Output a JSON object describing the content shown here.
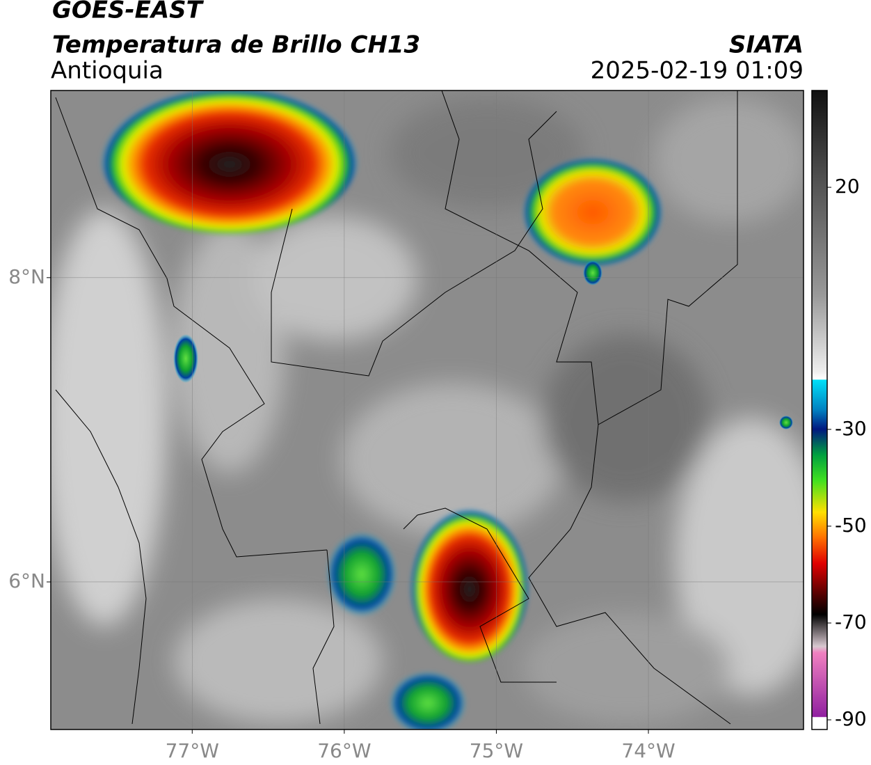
{
  "header": {
    "satellite": "GOES-EAST",
    "product": "Temperatura de Brillo CH13",
    "region": "Antioquia",
    "source": "SIATA",
    "datetime": "2025-02-19 01:09"
  },
  "map": {
    "xlim": [
      -77.93,
      -72.98
    ],
    "ylim": [
      5.03,
      9.23
    ],
    "xticks": [
      {
        "value": -77,
        "label": "77°W"
      },
      {
        "value": -76,
        "label": "76°W"
      },
      {
        "value": -75,
        "label": "75°W"
      },
      {
        "value": -74,
        "label": "74°W"
      }
    ],
    "yticks": [
      {
        "value": 8,
        "label": "8°N"
      },
      {
        "value": 6,
        "label": "6°N"
      }
    ],
    "grid": true
  },
  "colorbar": {
    "range": [
      40,
      -92
    ],
    "ticks": [
      20,
      -30,
      -50,
      -70,
      -90
    ]
  }
}
